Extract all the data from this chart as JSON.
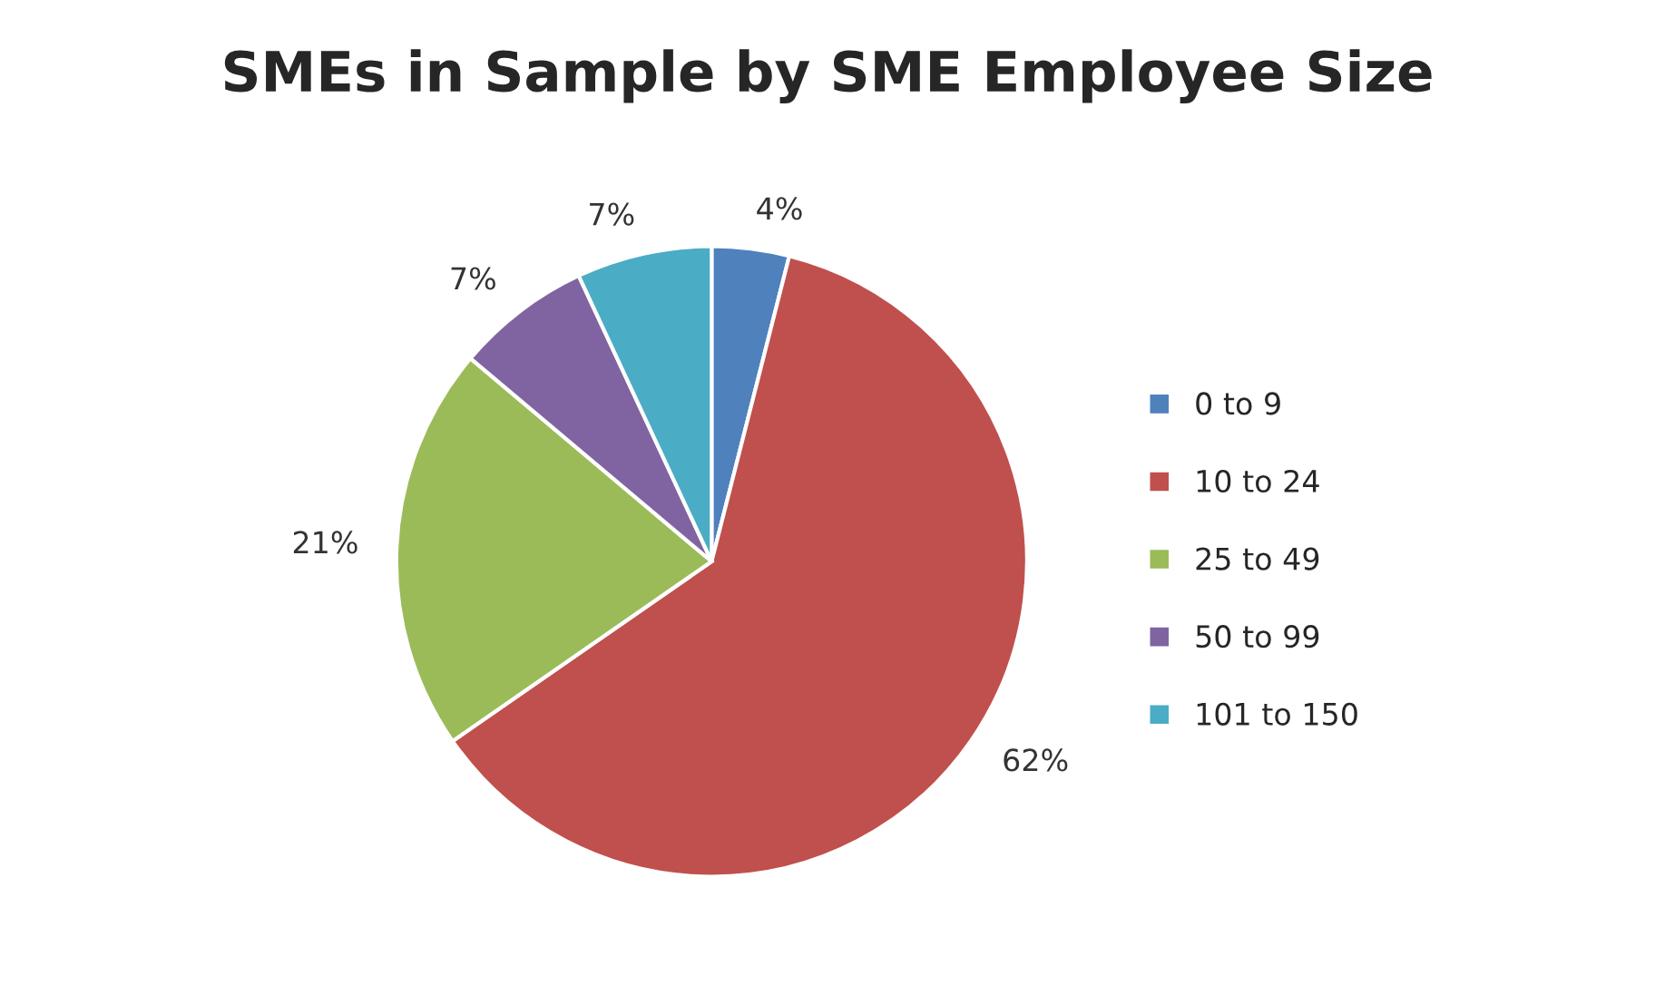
{
  "chart_data": {
    "type": "pie",
    "title": "SMEs in Sample by SME Employee Size",
    "categories": [
      "0 to 9",
      "10 to 24",
      "25 to 49",
      "50 to 99",
      "101 to 150"
    ],
    "values": [
      4,
      62,
      21,
      7,
      7
    ],
    "value_labels": [
      "4%",
      "62%",
      "21%",
      "7%",
      "7%"
    ],
    "colors": [
      "#4f81bd",
      "#c0504d",
      "#9bbb59",
      "#8064a2",
      "#4bacc6"
    ],
    "legend": "right"
  }
}
